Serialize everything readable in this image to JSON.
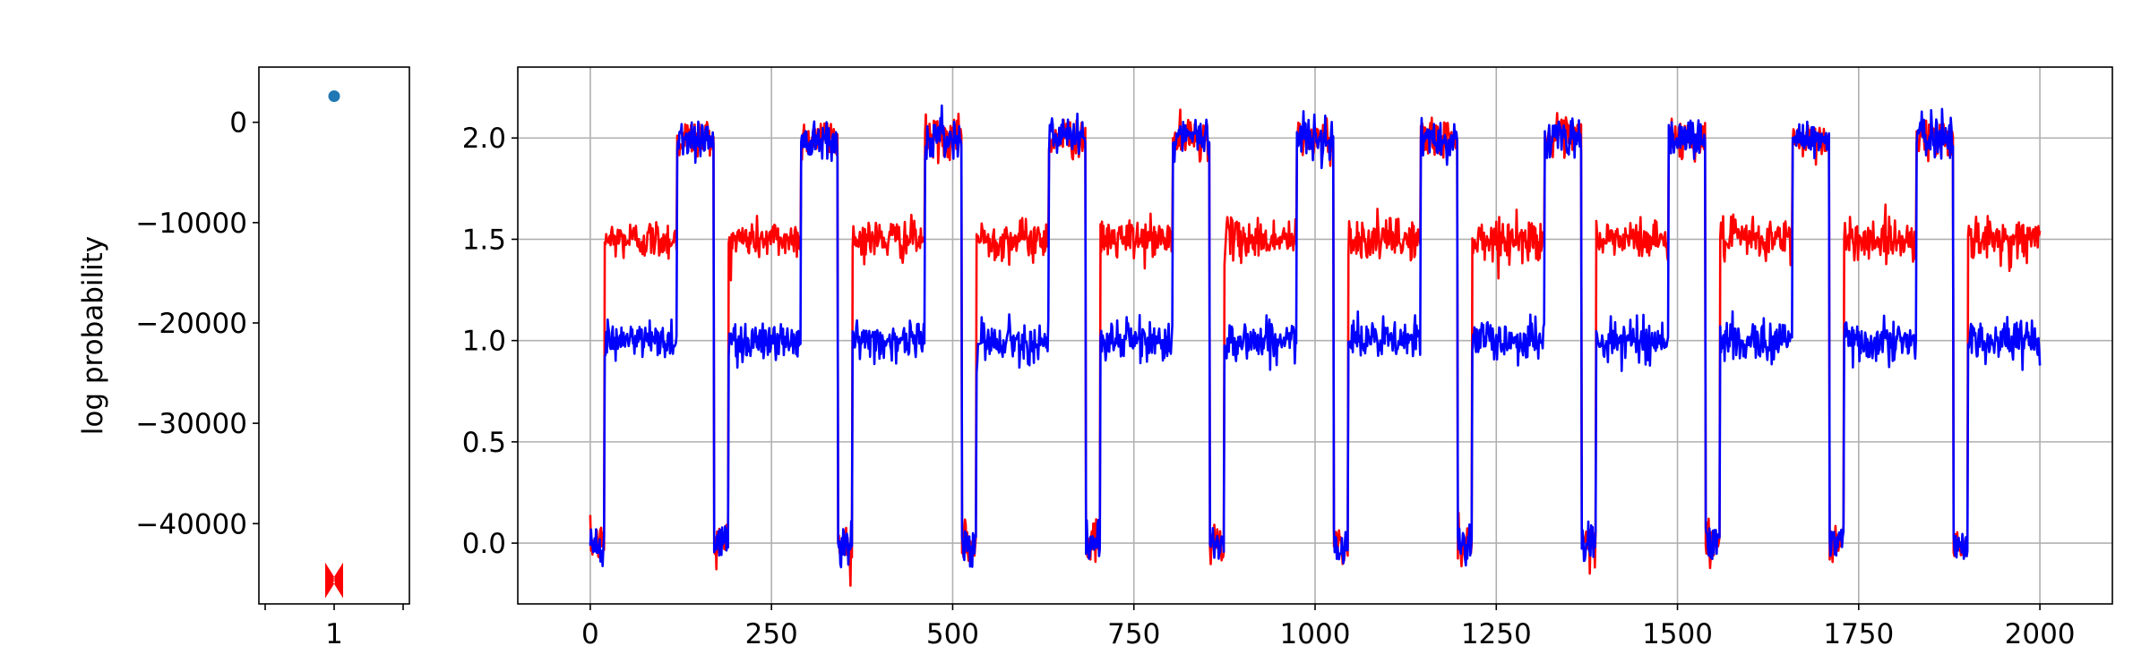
{
  "chart_data": [
    {
      "type": "scatter",
      "xlabel": "",
      "ylabel": "log probability",
      "xlim": [
        0.5,
        1.5
      ],
      "ylim": [
        -48000,
        5500
      ],
      "x_ticks": [
        1
      ],
      "y_ticks": [
        0,
        -10000,
        -20000,
        -30000,
        -40000
      ],
      "grid": false,
      "series": [
        {
          "marker": "circle",
          "color": "#1f77b4",
          "points": [
            [
              1,
              2600
            ]
          ]
        },
        {
          "marker": "bowtie",
          "color": "#ff0000",
          "points": [
            [
              1,
              -45300
            ],
            [
              1,
              -45700
            ],
            [
              1,
              -46000
            ],
            [
              1,
              -45500
            ]
          ]
        }
      ]
    },
    {
      "type": "line",
      "xlabel": "",
      "ylabel": "",
      "xlim": [
        -100,
        2100
      ],
      "ylim": [
        -0.3,
        2.35
      ],
      "x_ticks": [
        0,
        250,
        500,
        750,
        1000,
        1250,
        1500,
        1750,
        2000
      ],
      "y_ticks": [
        0.0,
        0.5,
        1.0,
        1.5,
        2.0
      ],
      "y_tick_labels": [
        "0.0",
        "0.5",
        "1.0",
        "1.5",
        "2.0"
      ],
      "grid": true,
      "x_range": [
        0,
        2000
      ],
      "noise_level": 0.05,
      "segment_pattern": {
        "period": 171,
        "segments": [
          {
            "length": 20,
            "red": 0.0,
            "blue": 0.0
          },
          {
            "length": 100,
            "red": 1.5,
            "blue": 1.0
          },
          {
            "length": 51,
            "red": 2.0,
            "blue": 2.0
          }
        ]
      },
      "series": [
        {
          "color": "#ff0000"
        },
        {
          "color": "#0000ff"
        }
      ]
    }
  ]
}
